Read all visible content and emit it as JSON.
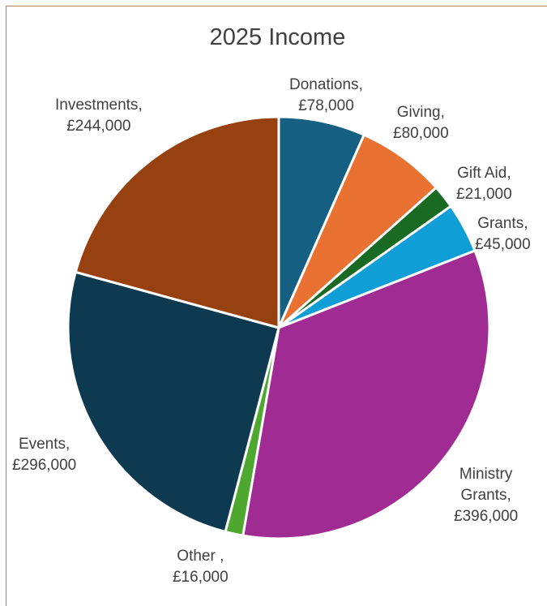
{
  "chart_data": {
    "type": "pie",
    "title": "2025 Income",
    "categories": [
      "Donations",
      "Giving",
      "Gift Aid",
      "Grants",
      "Ministry Grants",
      "Other ",
      "Events",
      "Investments"
    ],
    "values": [
      78000,
      80000,
      21000,
      45000,
      396000,
      16000,
      296000,
      244000
    ],
    "labels": [
      "£78,000",
      "£80,000",
      "£21,000",
      "£45,000",
      "£396,000",
      "£16,000",
      "£296,000",
      "£244,000"
    ],
    "colors": [
      "#156082",
      "#e97132",
      "#196b24",
      "#0f9ed5",
      "#a02b93",
      "#4ea72e",
      "#0e3a51",
      "#974010"
    ],
    "legend": "none"
  }
}
